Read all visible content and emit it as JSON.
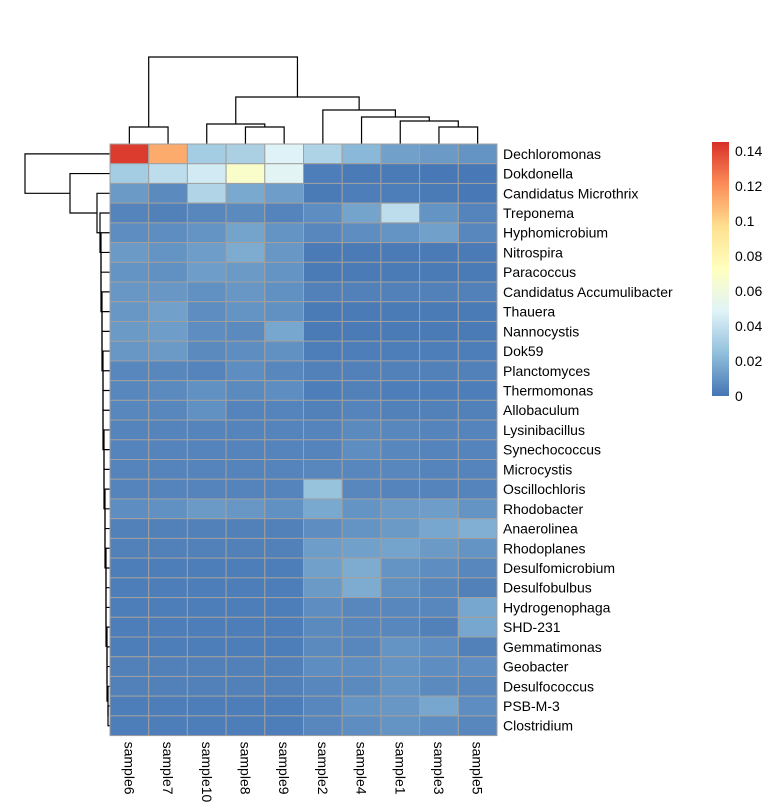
{
  "chart_data": {
    "type": "heatmap",
    "title": "",
    "samples": [
      "sample6",
      "sample7",
      "sample10",
      "sample8",
      "sample9",
      "sample2",
      "sample4",
      "sample1",
      "sample3",
      "sample5"
    ],
    "taxa": [
      "Dechloromonas",
      "Dokdonella",
      "Candidatus Microthrix",
      "Treponema",
      "Hyphomicrobium",
      "Nitrospira",
      "Paracoccus",
      "Candidatus Accumulibacter",
      "Thauera",
      "Nannocystis",
      "Dok59",
      "Planctomyces",
      "Thermomonas",
      "Allobaculum",
      "Lysinibacillus",
      "Synechococcus",
      "Microcystis",
      "Oscillochloris",
      "Rhodobacter",
      "Anaerolinea",
      "Rhodoplanes",
      "Desulfomicrobium",
      "Desulfobulbus",
      "Hydrogenophaga",
      "SHD-231",
      "Gemmatimonas",
      "Geobacter",
      "Desulfococcus",
      "PSB-M-3",
      "Clostridium"
    ],
    "values": [
      [
        0.142,
        0.112,
        0.03,
        0.032,
        0.048,
        0.033,
        0.022,
        0.014,
        0.012,
        0.01
      ],
      [
        0.03,
        0.038,
        0.044,
        0.068,
        0.05,
        0.003,
        0.002,
        0.002,
        0.001,
        0.001
      ],
      [
        0.012,
        0.007,
        0.034,
        0.017,
        0.013,
        0.002,
        0.003,
        0.003,
        0.002,
        0.001
      ],
      [
        0.005,
        0.004,
        0.006,
        0.007,
        0.005,
        0.008,
        0.015,
        0.038,
        0.01,
        0.005
      ],
      [
        0.008,
        0.008,
        0.01,
        0.015,
        0.01,
        0.006,
        0.008,
        0.01,
        0.014,
        0.006
      ],
      [
        0.012,
        0.01,
        0.013,
        0.018,
        0.011,
        0.002,
        0.002,
        0.002,
        0.002,
        0.002
      ],
      [
        0.01,
        0.009,
        0.013,
        0.012,
        0.01,
        0.002,
        0.002,
        0.002,
        0.002,
        0.002
      ],
      [
        0.011,
        0.011,
        0.009,
        0.011,
        0.009,
        0.004,
        0.004,
        0.004,
        0.004,
        0.004
      ],
      [
        0.011,
        0.014,
        0.008,
        0.01,
        0.009,
        0.002,
        0.002,
        0.002,
        0.002,
        0.002
      ],
      [
        0.012,
        0.013,
        0.008,
        0.007,
        0.016,
        0.002,
        0.002,
        0.002,
        0.002,
        0.002
      ],
      [
        0.011,
        0.012,
        0.007,
        0.008,
        0.009,
        0.003,
        0.003,
        0.003,
        0.003,
        0.003
      ],
      [
        0.006,
        0.006,
        0.005,
        0.008,
        0.006,
        0.004,
        0.004,
        0.004,
        0.004,
        0.004
      ],
      [
        0.006,
        0.007,
        0.009,
        0.007,
        0.008,
        0.003,
        0.004,
        0.003,
        0.003,
        0.003
      ],
      [
        0.006,
        0.006,
        0.009,
        0.005,
        0.005,
        0.004,
        0.005,
        0.004,
        0.004,
        0.004
      ],
      [
        0.005,
        0.005,
        0.005,
        0.005,
        0.005,
        0.005,
        0.007,
        0.006,
        0.005,
        0.005
      ],
      [
        0.005,
        0.005,
        0.005,
        0.005,
        0.005,
        0.005,
        0.008,
        0.006,
        0.005,
        0.005
      ],
      [
        0.005,
        0.005,
        0.005,
        0.005,
        0.005,
        0.006,
        0.006,
        0.006,
        0.005,
        0.005
      ],
      [
        0.005,
        0.005,
        0.005,
        0.005,
        0.005,
        0.026,
        0.006,
        0.005,
        0.005,
        0.005
      ],
      [
        0.008,
        0.009,
        0.012,
        0.011,
        0.009,
        0.017,
        0.01,
        0.012,
        0.013,
        0.01
      ],
      [
        0.004,
        0.004,
        0.004,
        0.004,
        0.004,
        0.008,
        0.01,
        0.012,
        0.016,
        0.019
      ],
      [
        0.004,
        0.004,
        0.004,
        0.004,
        0.004,
        0.013,
        0.014,
        0.015,
        0.012,
        0.01
      ],
      [
        0.003,
        0.003,
        0.003,
        0.003,
        0.003,
        0.014,
        0.018,
        0.01,
        0.008,
        0.006
      ],
      [
        0.003,
        0.003,
        0.003,
        0.003,
        0.003,
        0.012,
        0.018,
        0.009,
        0.006,
        0.004
      ],
      [
        0.003,
        0.003,
        0.003,
        0.003,
        0.003,
        0.008,
        0.006,
        0.006,
        0.006,
        0.016
      ],
      [
        0.003,
        0.003,
        0.003,
        0.003,
        0.003,
        0.007,
        0.006,
        0.006,
        0.004,
        0.016
      ],
      [
        0.003,
        0.003,
        0.003,
        0.003,
        0.003,
        0.007,
        0.006,
        0.01,
        0.008,
        0.004
      ],
      [
        0.004,
        0.004,
        0.004,
        0.004,
        0.004,
        0.008,
        0.008,
        0.01,
        0.008,
        0.008
      ],
      [
        0.004,
        0.004,
        0.004,
        0.004,
        0.004,
        0.006,
        0.007,
        0.01,
        0.007,
        0.006
      ],
      [
        0.003,
        0.003,
        0.003,
        0.003,
        0.003,
        0.006,
        0.01,
        0.011,
        0.016,
        0.008
      ],
      [
        0.003,
        0.003,
        0.003,
        0.003,
        0.003,
        0.006,
        0.008,
        0.01,
        0.008,
        0.006
      ]
    ],
    "color_scale": {
      "min": 0,
      "max": 0.145,
      "stops": [
        "#4575b4",
        "#91bfdb",
        "#e0f3f8",
        "#ffffbf",
        "#fee090",
        "#fc8d59",
        "#d73027"
      ],
      "ticks": [
        "0",
        "0.02",
        "0.04",
        "0.06",
        "0.08",
        "0.1",
        "0.12",
        "0.14"
      ],
      "tick_values": [
        0,
        0.02,
        0.04,
        0.06,
        0.08,
        0.1,
        0.12,
        0.14
      ]
    },
    "cell_border_color": "#a0a0a0",
    "column_dendrogram": [
      "sample6",
      "sample7",
      "sample10",
      "sample8",
      "sample9",
      "sample2",
      "sample4",
      "sample1",
      "sample3",
      "sample5"
    ],
    "row_dendrogram": [
      "Dechloromonas",
      "Dokdonella",
      "Candidatus Microthrix",
      "Treponema",
      "Hyphomicrobium",
      "Nitrospira",
      "Paracoccus",
      "Candidatus Accumulibacter",
      "Thauera",
      "Nannocystis",
      "Dok59",
      "Planctomyces",
      "Thermomonas",
      "Allobaculum",
      "Lysinibacillus",
      "Synechococcus",
      "Microcystis",
      "Oscillochloris",
      "Rhodobacter",
      "Anaerolinea",
      "Rhodoplanes",
      "Desulfomicrobium",
      "Desulfobulbus",
      "Hydrogenophaga",
      "SHD-231",
      "Gemmatimonas",
      "Geobacter",
      "Desulfococcus",
      "PSB-M-3",
      "Clostridium"
    ]
  }
}
